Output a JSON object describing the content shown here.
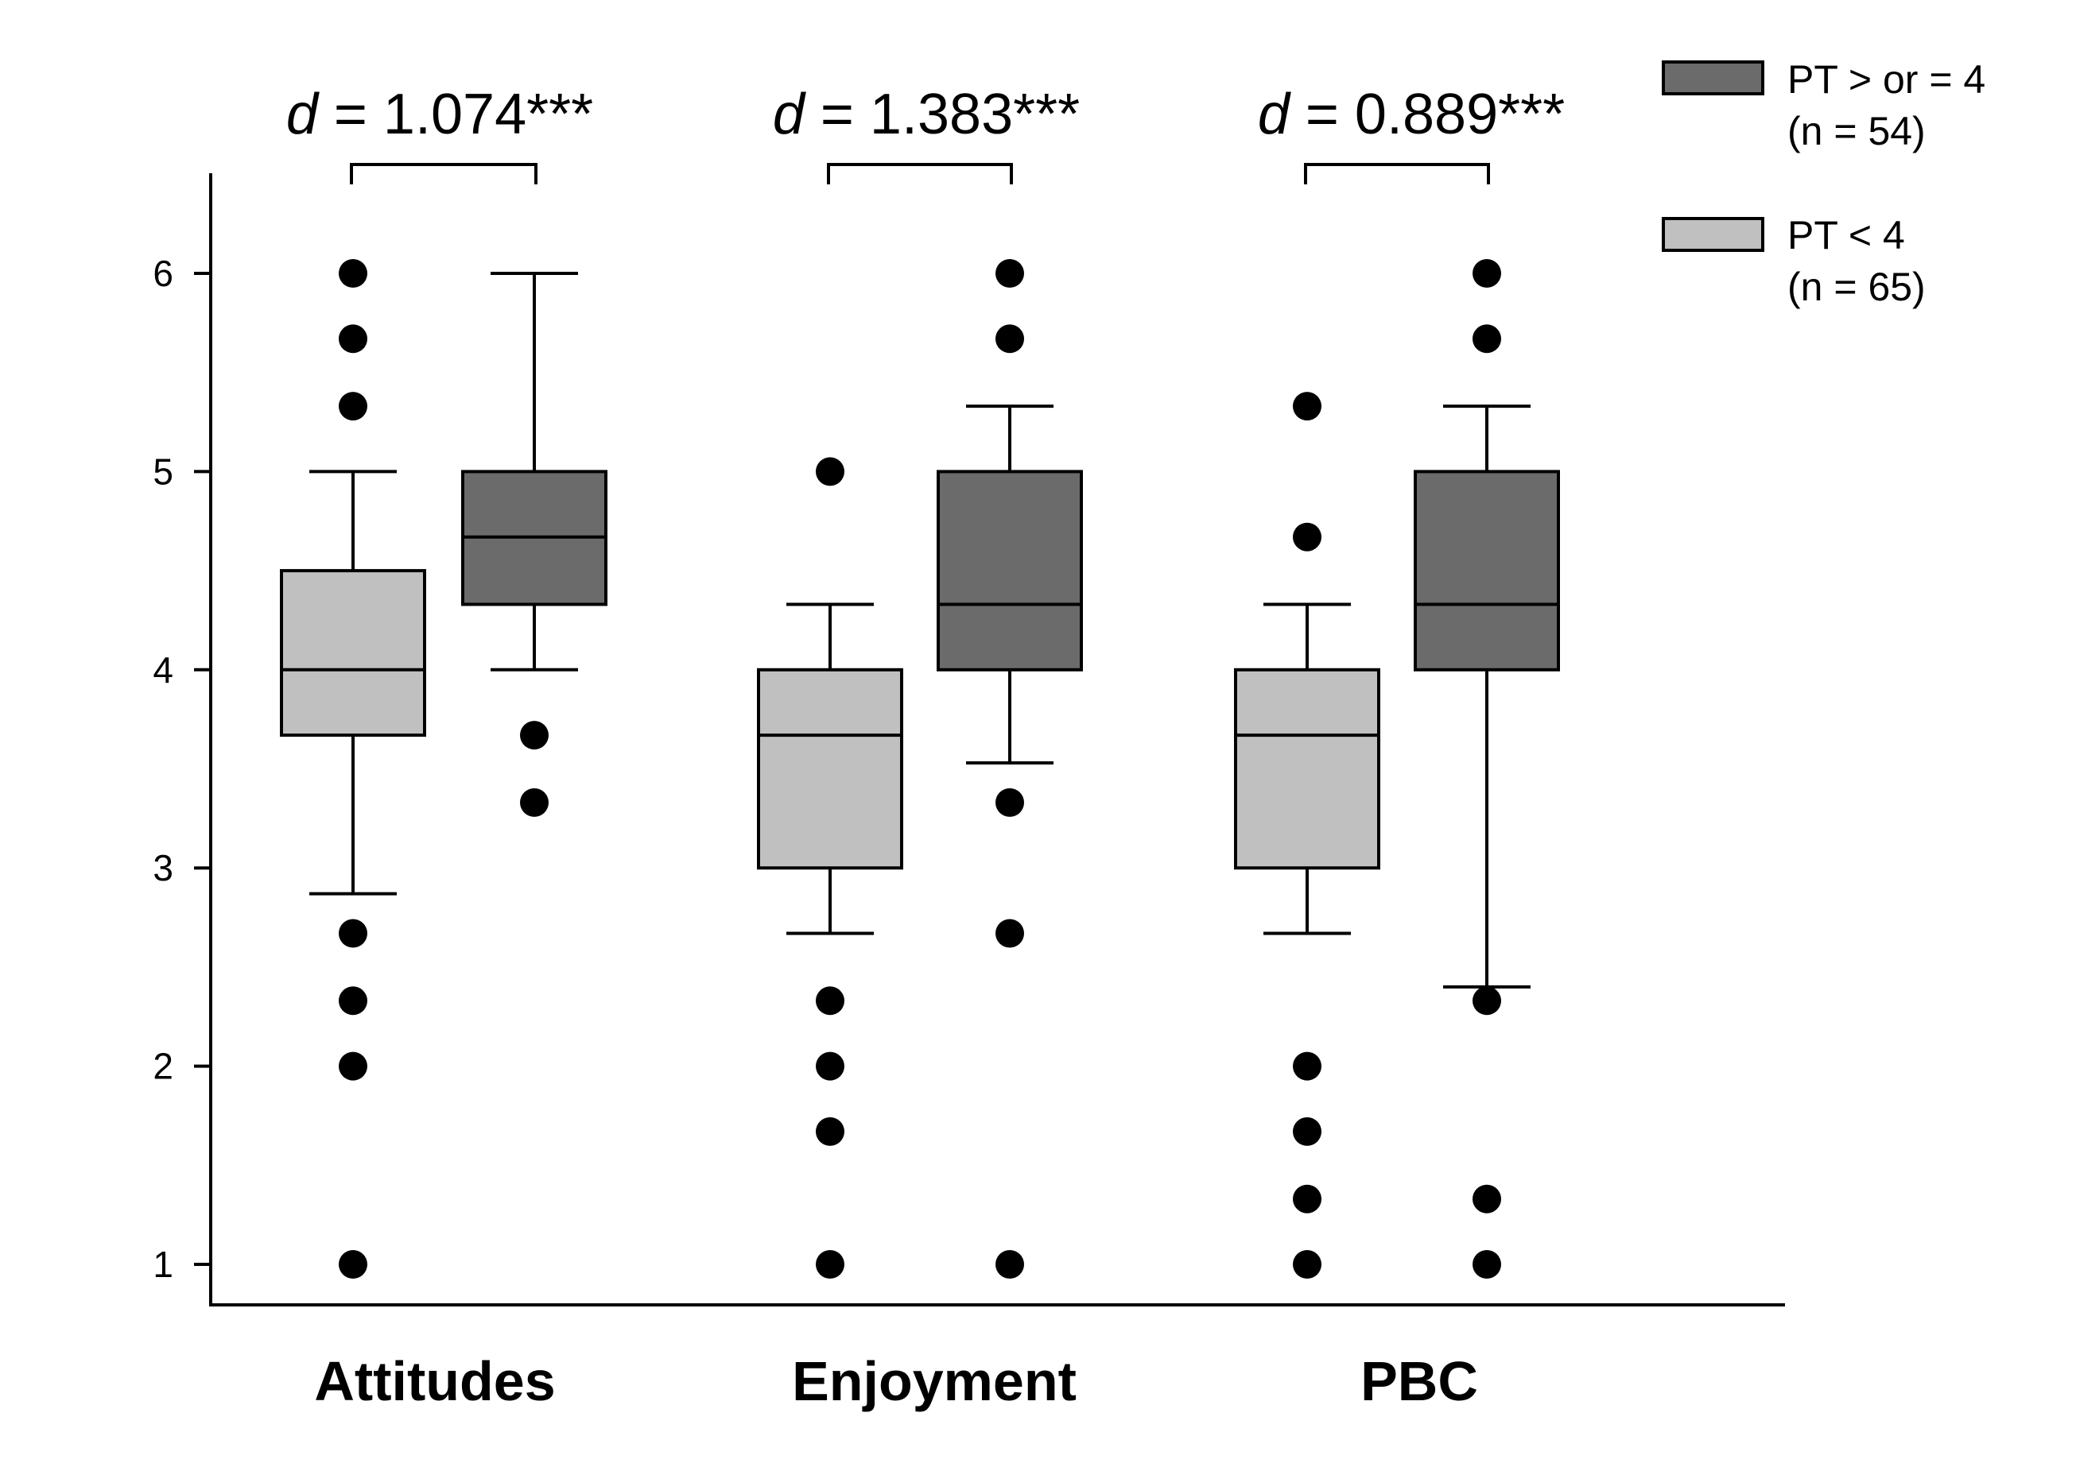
{
  "chart_data": {
    "type": "boxplot",
    "title": "",
    "xlabel": "",
    "ylabel": "",
    "ylim": [
      0.8,
      6.5
    ],
    "yticks": [
      1,
      2,
      3,
      4,
      5,
      6
    ],
    "categories": [
      "Attitudes",
      "Enjoyment",
      "PBC"
    ],
    "legend": {
      "position": "top-right",
      "entries": [
        {
          "series": "high",
          "label": "PT > or = 4",
          "sublabel": "(n = 54)"
        },
        {
          "series": "low",
          "label": "PT < 4",
          "sublabel": "(n = 65)"
        }
      ]
    },
    "colors": {
      "low": "#c0c0c0",
      "high": "#6b6b6b",
      "outlier": "#000000",
      "axis": "#000000"
    },
    "effect_sizes": [
      {
        "category": "Attitudes",
        "symbol": "d",
        "text": " = 1.074***"
      },
      {
        "category": "Enjoyment",
        "symbol": "d",
        "text": " = 1.383***"
      },
      {
        "category": "PBC",
        "symbol": "d",
        "text": " = 0.889***"
      }
    ],
    "series": [
      {
        "name": "low",
        "boxes": [
          {
            "category": "Attitudes",
            "whisker_low": 2.87,
            "q1": 3.67,
            "median": 4.0,
            "q3": 4.5,
            "whisker_high": 5.0,
            "outliers": [
              6.0,
              5.67,
              5.33,
              2.67,
              2.33,
              2.0,
              1.0
            ]
          },
          {
            "category": "Enjoyment",
            "whisker_low": 2.67,
            "q1": 3.0,
            "median": 3.67,
            "q3": 4.0,
            "whisker_high": 4.33,
            "outliers": [
              5.0,
              2.33,
              2.0,
              1.67,
              1.0
            ]
          },
          {
            "category": "PBC",
            "whisker_low": 2.67,
            "q1": 3.0,
            "median": 3.67,
            "q3": 4.0,
            "whisker_high": 4.33,
            "outliers": [
              5.33,
              4.67,
              2.0,
              1.67,
              1.33,
              1.0
            ]
          }
        ]
      },
      {
        "name": "high",
        "boxes": [
          {
            "category": "Attitudes",
            "whisker_low": 4.0,
            "q1": 4.33,
            "median": 4.67,
            "q3": 5.0,
            "whisker_high": 6.0,
            "outliers": [
              3.67,
              3.33
            ]
          },
          {
            "category": "Enjoyment",
            "whisker_low": 3.53,
            "q1": 4.0,
            "median": 4.33,
            "q3": 5.0,
            "whisker_high": 5.33,
            "outliers": [
              6.0,
              5.67,
              3.33,
              2.67,
              1.0
            ]
          },
          {
            "category": "PBC",
            "whisker_low": 2.4,
            "q1": 4.0,
            "median": 4.33,
            "q3": 5.0,
            "whisker_high": 5.33,
            "outliers": [
              6.0,
              5.67,
              2.33,
              1.33,
              1.0
            ]
          }
        ]
      }
    ]
  }
}
